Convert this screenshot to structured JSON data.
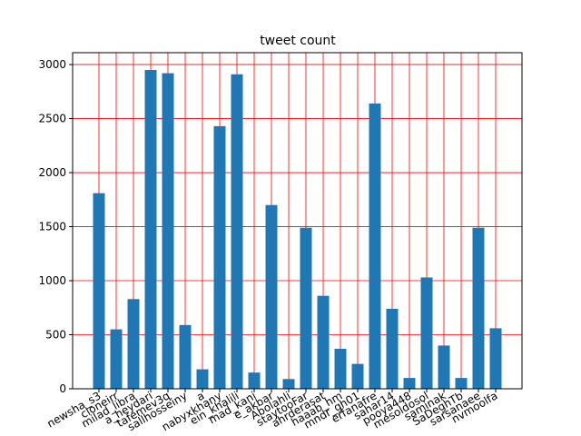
{
  "chart_data": {
    "type": "bar",
    "title": "tweet count",
    "categories": [
      "newsha_s3",
      "cloneirr",
      "milad_libra",
      "a_heydari",
      "tafemev3q",
      "sallhosseiny",
      "a",
      "nabyxkhany",
      "ein_khalili",
      "mad_kani",
      "e_akbar",
      "Abolahli",
      "staytooFar",
      "ahrderasat",
      "haaab_hm",
      "mndr_gh01",
      "erfanafre",
      "sahar14",
      "pooya448",
      "mesoldosol",
      "saminak",
      "SaDeghTb",
      "sarsanaee",
      "nvmoolfa"
    ],
    "values": [
      1810,
      550,
      830,
      2950,
      2920,
      590,
      180,
      2430,
      2910,
      150,
      1700,
      90,
      1490,
      860,
      370,
      230,
      2640,
      740,
      100,
      1030,
      400,
      100,
      1490,
      560
    ],
    "color": "#1f77b4",
    "ylim": [
      0,
      3110
    ],
    "yticks": [
      0,
      500,
      1000,
      1500,
      2000,
      2500,
      3000
    ],
    "grid": true,
    "grid_color": "#ff0000"
  }
}
